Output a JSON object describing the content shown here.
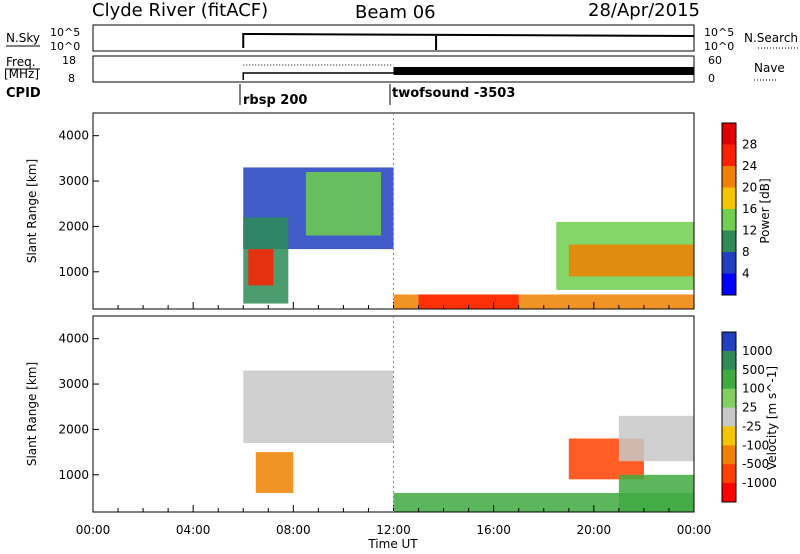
{
  "header": {
    "station": "Clyde River (fitACF)",
    "beam": "Beam 06",
    "date": "28/Apr/2015"
  },
  "top_panels": {
    "nsky_label": "N.Sky",
    "nsky_ticks": [
      "10^5",
      "10^0"
    ],
    "nsearch_label": "N.Search",
    "nsearch_ticks": [
      "10^5",
      "10^0"
    ],
    "freq_label_1": "Freq.",
    "freq_label_2": "[MHz]",
    "freq_ticks": [
      "18",
      "8"
    ],
    "nave_label": "Nave",
    "nave_ticks": [
      "60",
      "0"
    ],
    "cpid_label": "CPID",
    "cpid_1": "rbsp 200",
    "cpid_2": "twofsound -3503"
  },
  "chart_data": [
    {
      "type": "heatmap",
      "name": "power",
      "ylabel": "Slant Range [km]",
      "xlabel": "",
      "xlim": [
        "00:00",
        "24:00"
      ],
      "ylim": [
        180,
        4500
      ],
      "y_ticks": [
        "1000",
        "2000",
        "3000",
        "4000"
      ],
      "colorbar_label": "Power [dB]",
      "colorbar_ticks": [
        "4",
        "8",
        "12",
        "16",
        "20",
        "24",
        "28"
      ],
      "colors": [
        "#0000ff",
        "#2040c0",
        "#2e8b57",
        "#6fcf4f",
        "#f5c400",
        "#f08000",
        "#ff2000",
        "#e00000"
      ],
      "regions": [
        {
          "t0": 6.0,
          "t1": 12.0,
          "r0": 1500,
          "r1": 3300,
          "level": 1
        },
        {
          "t0": 6.0,
          "t1": 7.8,
          "r0": 300,
          "r1": 2200,
          "level": 2
        },
        {
          "t0": 6.2,
          "t1": 7.2,
          "r0": 700,
          "r1": 1500,
          "level": 6
        },
        {
          "t0": 8.5,
          "t1": 11.5,
          "r0": 1800,
          "r1": 3200,
          "level": 3
        },
        {
          "t0": 12.0,
          "t1": 24.0,
          "r0": 180,
          "r1": 500,
          "level": 5
        },
        {
          "t0": 13.0,
          "t1": 17.0,
          "r0": 180,
          "r1": 500,
          "level": 6
        },
        {
          "t0": 18.5,
          "t1": 24.0,
          "r0": 600,
          "r1": 2100,
          "level": 3
        },
        {
          "t0": 19.0,
          "t1": 24.0,
          "r0": 900,
          "r1": 1600,
          "level": 5
        }
      ]
    },
    {
      "type": "heatmap",
      "name": "velocity",
      "ylabel": "Slant Range [km]",
      "xlabel": "Time UT",
      "xlim": [
        "00:00",
        "24:00"
      ],
      "ylim": [
        180,
        4500
      ],
      "x_ticks": [
        "00:00",
        "04:00",
        "08:00",
        "12:00",
        "16:00",
        "20:00",
        "00:00"
      ],
      "y_ticks": [
        "1000",
        "2000",
        "3000",
        "4000"
      ],
      "colorbar_label": "Velocity [m s^-1]",
      "colorbar_ticks": [
        "1000",
        "500",
        "100",
        "25",
        "-25",
        "-100",
        "-500",
        "-1000"
      ],
      "colors": [
        "#2040c0",
        "#2e8b57",
        "#3faa3f",
        "#7fd05f",
        "#c8c8c8",
        "#f5c400",
        "#f08000",
        "#ff4000",
        "#ff0000"
      ],
      "regions": [
        {
          "t0": 6.0,
          "t1": 12.0,
          "r0": 1700,
          "r1": 3300,
          "level": 4
        },
        {
          "t0": 6.5,
          "t1": 8.0,
          "r0": 600,
          "r1": 1500,
          "level": 6
        },
        {
          "t0": 12.0,
          "t1": 24.0,
          "r0": 180,
          "r1": 600,
          "level": 2
        },
        {
          "t0": 19.0,
          "t1": 22.0,
          "r0": 900,
          "r1": 1800,
          "level": 7
        },
        {
          "t0": 21.0,
          "t1": 24.0,
          "r0": 1300,
          "r1": 2300,
          "level": 4
        },
        {
          "t0": 21.0,
          "t1": 24.0,
          "r0": 200,
          "r1": 1000,
          "level": 2
        }
      ]
    }
  ]
}
